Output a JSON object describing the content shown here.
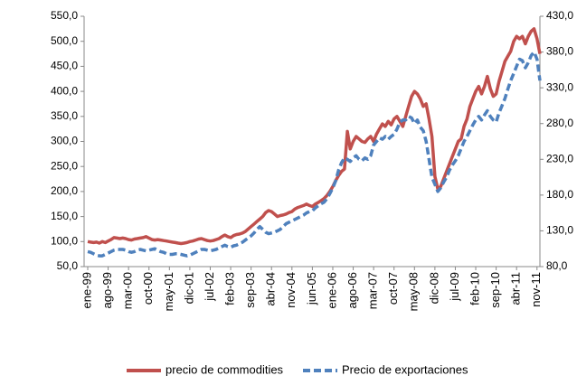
{
  "chart_data": {
    "type": "line",
    "categories": [
      "ene-99",
      null,
      null,
      null,
      null,
      null,
      null,
      "ago-99",
      null,
      null,
      null,
      null,
      null,
      null,
      "mar-00",
      null,
      null,
      null,
      null,
      null,
      null,
      "oct-00",
      null,
      null,
      null,
      null,
      null,
      null,
      "may-01",
      null,
      null,
      null,
      null,
      null,
      null,
      "dic-01",
      null,
      null,
      null,
      null,
      null,
      null,
      "jul-02",
      null,
      null,
      null,
      null,
      null,
      null,
      "feb-03",
      null,
      null,
      null,
      null,
      null,
      null,
      "sep-03",
      null,
      null,
      null,
      null,
      null,
      null,
      "abr-04",
      null,
      null,
      null,
      null,
      null,
      null,
      "nov-04",
      null,
      null,
      null,
      null,
      null,
      null,
      "jun-05",
      null,
      null,
      null,
      null,
      null,
      null,
      "ene-06",
      null,
      null,
      null,
      null,
      null,
      null,
      "ago-06",
      null,
      null,
      null,
      null,
      null,
      null,
      "mar-07",
      null,
      null,
      null,
      null,
      null,
      null,
      "oct-07",
      null,
      null,
      null,
      null,
      null,
      null,
      "may-08",
      null,
      null,
      null,
      null,
      null,
      null,
      "dic-08",
      null,
      null,
      null,
      null,
      null,
      null,
      "jul-09",
      null,
      null,
      null,
      null,
      null,
      null,
      "feb-10",
      null,
      null,
      null,
      null,
      null,
      null,
      "sep-10",
      null,
      null,
      null,
      null,
      null,
      null,
      "abr-11",
      null,
      null,
      null,
      null,
      null,
      null,
      "nov-11",
      null
    ],
    "series": [
      {
        "name": "precio de commodities",
        "color": "#c0504d",
        "dashed": false,
        "values": [
          100,
          99,
          98,
          99,
          97,
          100,
          98,
          101,
          104,
          108,
          107,
          106,
          107,
          106,
          104,
          103,
          105,
          106,
          107,
          108,
          110,
          107,
          104,
          103,
          104,
          103,
          102,
          101,
          100,
          99,
          98,
          97,
          96,
          97,
          98,
          100,
          101,
          103,
          105,
          106,
          104,
          102,
          101,
          102,
          104,
          106,
          110,
          113,
          110,
          108,
          112,
          114,
          115,
          117,
          120,
          125,
          130,
          135,
          140,
          145,
          150,
          158,
          162,
          160,
          155,
          150,
          152,
          153,
          155,
          158,
          160,
          165,
          168,
          170,
          172,
          175,
          172,
          170,
          175,
          178,
          182,
          186,
          192,
          200,
          210,
          222,
          232,
          240,
          245,
          320,
          285,
          300,
          310,
          305,
          300,
          298,
          305,
          310,
          300,
          315,
          325,
          335,
          330,
          340,
          333,
          345,
          350,
          340,
          330,
          350,
          370,
          390,
          400,
          395,
          385,
          370,
          375,
          345,
          310,
          230,
          205,
          210,
          225,
          240,
          255,
          270,
          285,
          300,
          305,
          330,
          345,
          370,
          385,
          400,
          410,
          395,
          410,
          430,
          405,
          390,
          395,
          420,
          440,
          460,
          470,
          480,
          500,
          510,
          505,
          510,
          495,
          510,
          520,
          525,
          505,
          475
        ]
      },
      {
        "name": "Precio de exportaciones",
        "color": "#4f81bd",
        "dashed": true,
        "axis": "y2",
        "values": [
          101,
          100,
          98,
          96,
          95,
          95,
          97,
          99,
          101,
          103,
          104,
          104,
          104,
          103,
          101,
          100,
          101,
          103,
          104,
          103,
          102,
          103,
          104,
          105,
          103,
          101,
          100,
          98,
          97,
          97,
          98,
          98,
          97,
          96,
          95,
          96,
          98,
          100,
          102,
          104,
          104,
          103,
          102,
          103,
          104,
          106,
          108,
          110,
          108,
          107,
          109,
          110,
          112,
          114,
          117,
          120,
          123,
          127,
          132,
          136,
          132,
          128,
          126,
          127,
          128,
          130,
          132,
          136,
          140,
          142,
          144,
          146,
          148,
          150,
          152,
          155,
          157,
          158,
          162,
          165,
          168,
          170,
          175,
          182,
          190,
          200,
          215,
          225,
          232,
          230,
          227,
          232,
          235,
          230,
          228,
          232,
          230,
          235,
          250,
          255,
          260,
          258,
          262,
          258,
          262,
          265,
          272,
          282,
          285,
          285,
          290,
          288,
          280,
          285,
          275,
          270,
          255,
          230,
          205,
          195,
          185,
          190,
          198,
          205,
          215,
          222,
          228,
          235,
          245,
          255,
          262,
          270,
          278,
          285,
          290,
          285,
          292,
          298,
          290,
          285,
          282,
          295,
          305,
          315,
          328,
          340,
          350,
          360,
          370,
          368,
          358,
          365,
          375,
          380,
          370,
          340
        ]
      }
    ],
    "ylim": [
      50,
      550
    ],
    "yticks": [
      {
        "value": 50,
        "label": "50,0"
      },
      {
        "value": 100,
        "label": "100,0"
      },
      {
        "value": 150,
        "label": "150,0"
      },
      {
        "value": 200,
        "label": "200,0"
      },
      {
        "value": 250,
        "label": "250,0"
      },
      {
        "value": 300,
        "label": "300,0"
      },
      {
        "value": 350,
        "label": "350,0"
      },
      {
        "value": 400,
        "label": "400,0"
      },
      {
        "value": 450,
        "label": "450,0"
      },
      {
        "value": 500,
        "label": "500,0"
      },
      {
        "value": 550,
        "label": "550,0"
      }
    ],
    "y2lim": [
      80,
      430
    ],
    "y2ticks": [
      {
        "value": 80,
        "label": "80,0"
      },
      {
        "value": 130,
        "label": "130,0"
      },
      {
        "value": 180,
        "label": "180,0"
      },
      {
        "value": 230,
        "label": "230,0"
      },
      {
        "value": 280,
        "label": "280,0"
      },
      {
        "value": 330,
        "label": "330,0"
      },
      {
        "value": 380,
        "label": "380,0"
      },
      {
        "value": 430,
        "label": "430,0"
      }
    ],
    "grid": false,
    "legend": "bottom"
  }
}
